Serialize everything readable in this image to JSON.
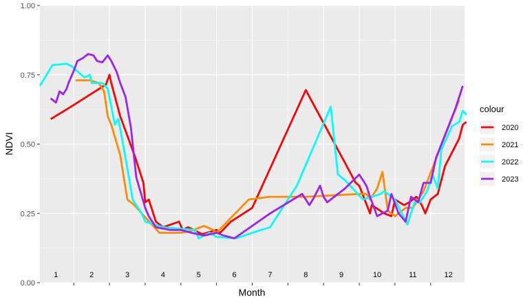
{
  "chart_data": {
    "type": "line",
    "title": "",
    "xlabel": "Month",
    "ylabel": "NDVI",
    "ylim": [
      0,
      1
    ],
    "xlim": [
      0.55,
      12.45
    ],
    "y_ticks": [
      "0.00",
      "0.25",
      "0.50",
      "0.75",
      "1.00"
    ],
    "y_tick_values": [
      0,
      0.25,
      0.5,
      0.75,
      1.0
    ],
    "x_month_labels": [
      "1",
      "2",
      "3",
      "4",
      "5",
      "6",
      "7",
      "8",
      "9",
      "10",
      "11",
      "12"
    ],
    "x_month_label_y": 0.02,
    "grid": true,
    "legend": {
      "title": "colour",
      "position": "right"
    },
    "background_color": "#ebebeb",
    "series": [
      {
        "name": "2020",
        "color": "#ff0000",
        "points": [
          [
            0.85,
            0.59
          ],
          [
            1.3,
            0.625
          ],
          [
            2.4,
            0.715
          ],
          [
            2.5,
            0.75
          ],
          [
            2.55,
            0.72
          ],
          [
            2.8,
            0.6
          ],
          [
            3.2,
            0.46
          ],
          [
            3.45,
            0.36
          ],
          [
            3.5,
            0.29
          ],
          [
            3.6,
            0.3
          ],
          [
            3.8,
            0.22
          ],
          [
            4.0,
            0.2
          ],
          [
            4.45,
            0.22
          ],
          [
            4.55,
            0.19
          ],
          [
            4.7,
            0.2
          ],
          [
            5.1,
            0.175
          ],
          [
            5.5,
            0.19
          ],
          [
            5.6,
            0.18
          ],
          [
            5.75,
            0.2
          ],
          [
            5.9,
            0.22
          ],
          [
            6.5,
            0.27
          ],
          [
            8.0,
            0.695
          ],
          [
            9.4,
            0.36
          ],
          [
            9.5,
            0.35
          ],
          [
            9.8,
            0.25
          ],
          [
            9.85,
            0.28
          ],
          [
            10.2,
            0.25
          ],
          [
            10.4,
            0.24
          ],
          [
            10.5,
            0.3
          ],
          [
            10.75,
            0.28
          ],
          [
            10.9,
            0.29
          ],
          [
            11.1,
            0.31
          ],
          [
            11.25,
            0.28
          ],
          [
            11.35,
            0.25
          ],
          [
            11.5,
            0.3
          ],
          [
            11.7,
            0.32
          ],
          [
            11.9,
            0.42
          ],
          [
            12.3,
            0.52
          ],
          [
            12.4,
            0.57
          ],
          [
            12.5,
            0.58
          ]
        ]
      },
      {
        "name": "2021",
        "color": "#ff8c00",
        "points": [
          [
            1.55,
            0.73
          ],
          [
            1.95,
            0.73
          ],
          [
            2.2,
            0.72
          ],
          [
            2.35,
            0.69
          ],
          [
            2.45,
            0.6
          ],
          [
            2.55,
            0.57
          ],
          [
            2.8,
            0.46
          ],
          [
            3.0,
            0.3
          ],
          [
            3.2,
            0.28
          ],
          [
            3.4,
            0.25
          ],
          [
            3.9,
            0.18
          ],
          [
            4.5,
            0.18
          ],
          [
            4.75,
            0.185
          ],
          [
            5.15,
            0.205
          ],
          [
            5.4,
            0.19
          ],
          [
            5.5,
            0.18
          ],
          [
            5.8,
            0.22
          ],
          [
            6.4,
            0.3
          ],
          [
            7.0,
            0.31
          ],
          [
            8.0,
            0.31
          ],
          [
            9.5,
            0.32
          ],
          [
            9.7,
            0.32
          ],
          [
            9.8,
            0.3
          ],
          [
            10.0,
            0.34
          ],
          [
            10.15,
            0.4
          ],
          [
            10.3,
            0.26
          ],
          [
            10.5,
            0.24
          ],
          [
            10.8,
            0.27
          ],
          [
            11.0,
            0.27
          ],
          [
            11.15,
            0.3
          ],
          [
            11.3,
            0.33
          ],
          [
            11.6,
            0.43
          ],
          [
            12.3,
            0.66
          ]
        ]
      },
      {
        "name": "2022",
        "color": "#00ffff",
        "points": [
          [
            0.55,
            0.71
          ],
          [
            0.9,
            0.785
          ],
          [
            1.3,
            0.79
          ],
          [
            1.45,
            0.78
          ],
          [
            1.8,
            0.74
          ],
          [
            1.95,
            0.75
          ],
          [
            2.0,
            0.72
          ],
          [
            2.3,
            0.72
          ],
          [
            2.45,
            0.7
          ],
          [
            2.65,
            0.57
          ],
          [
            2.75,
            0.59
          ],
          [
            2.95,
            0.45
          ],
          [
            3.15,
            0.3
          ],
          [
            3.4,
            0.25
          ],
          [
            3.5,
            0.22
          ],
          [
            4.0,
            0.2
          ],
          [
            4.9,
            0.19
          ],
          [
            5.0,
            0.16
          ],
          [
            5.3,
            0.18
          ],
          [
            5.5,
            0.165
          ],
          [
            6.05,
            0.16
          ],
          [
            6.5,
            0.18
          ],
          [
            7.0,
            0.2
          ],
          [
            7.75,
            0.35
          ],
          [
            8.7,
            0.635
          ],
          [
            8.9,
            0.39
          ],
          [
            9.1,
            0.37
          ],
          [
            9.6,
            0.3
          ],
          [
            10.1,
            0.32
          ],
          [
            10.2,
            0.33
          ],
          [
            10.4,
            0.31
          ],
          [
            10.5,
            0.3
          ],
          [
            10.85,
            0.21
          ],
          [
            11.05,
            0.29
          ],
          [
            11.2,
            0.29
          ],
          [
            11.4,
            0.33
          ],
          [
            11.55,
            0.39
          ],
          [
            11.7,
            0.34
          ],
          [
            11.8,
            0.48
          ],
          [
            12.1,
            0.565
          ],
          [
            12.3,
            0.58
          ],
          [
            12.4,
            0.62
          ],
          [
            12.5,
            0.605
          ]
        ]
      },
      {
        "name": "2023",
        "color": "#a020f0",
        "points": [
          [
            0.85,
            0.665
          ],
          [
            1.0,
            0.65
          ],
          [
            1.1,
            0.69
          ],
          [
            1.2,
            0.68
          ],
          [
            1.3,
            0.7
          ],
          [
            1.35,
            0.72
          ],
          [
            1.5,
            0.765
          ],
          [
            1.6,
            0.8
          ],
          [
            1.75,
            0.81
          ],
          [
            1.9,
            0.825
          ],
          [
            2.05,
            0.82
          ],
          [
            2.15,
            0.8
          ],
          [
            2.3,
            0.795
          ],
          [
            2.45,
            0.82
          ],
          [
            2.55,
            0.8
          ],
          [
            2.7,
            0.76
          ],
          [
            2.8,
            0.72
          ],
          [
            2.95,
            0.67
          ],
          [
            3.1,
            0.56
          ],
          [
            3.25,
            0.38
          ],
          [
            3.5,
            0.27
          ],
          [
            3.6,
            0.24
          ],
          [
            3.8,
            0.2
          ],
          [
            4.2,
            0.19
          ],
          [
            4.5,
            0.19
          ],
          [
            4.8,
            0.18
          ],
          [
            5.15,
            0.17
          ],
          [
            5.5,
            0.18
          ],
          [
            5.7,
            0.17
          ],
          [
            6.0,
            0.16
          ],
          [
            7.0,
            0.25
          ],
          [
            7.9,
            0.32
          ],
          [
            8.1,
            0.28
          ],
          [
            8.2,
            0.3
          ],
          [
            8.4,
            0.35
          ],
          [
            8.5,
            0.31
          ],
          [
            8.6,
            0.29
          ],
          [
            9.1,
            0.34
          ],
          [
            9.5,
            0.39
          ],
          [
            9.7,
            0.35
          ],
          [
            9.8,
            0.31
          ],
          [
            10.0,
            0.24
          ],
          [
            10.3,
            0.26
          ],
          [
            10.4,
            0.32
          ],
          [
            10.6,
            0.25
          ],
          [
            10.8,
            0.22
          ],
          [
            10.95,
            0.31
          ],
          [
            11.15,
            0.29
          ],
          [
            11.3,
            0.36
          ],
          [
            11.5,
            0.36
          ],
          [
            11.65,
            0.45
          ],
          [
            12.2,
            0.63
          ],
          [
            12.4,
            0.71
          ]
        ]
      }
    ]
  }
}
